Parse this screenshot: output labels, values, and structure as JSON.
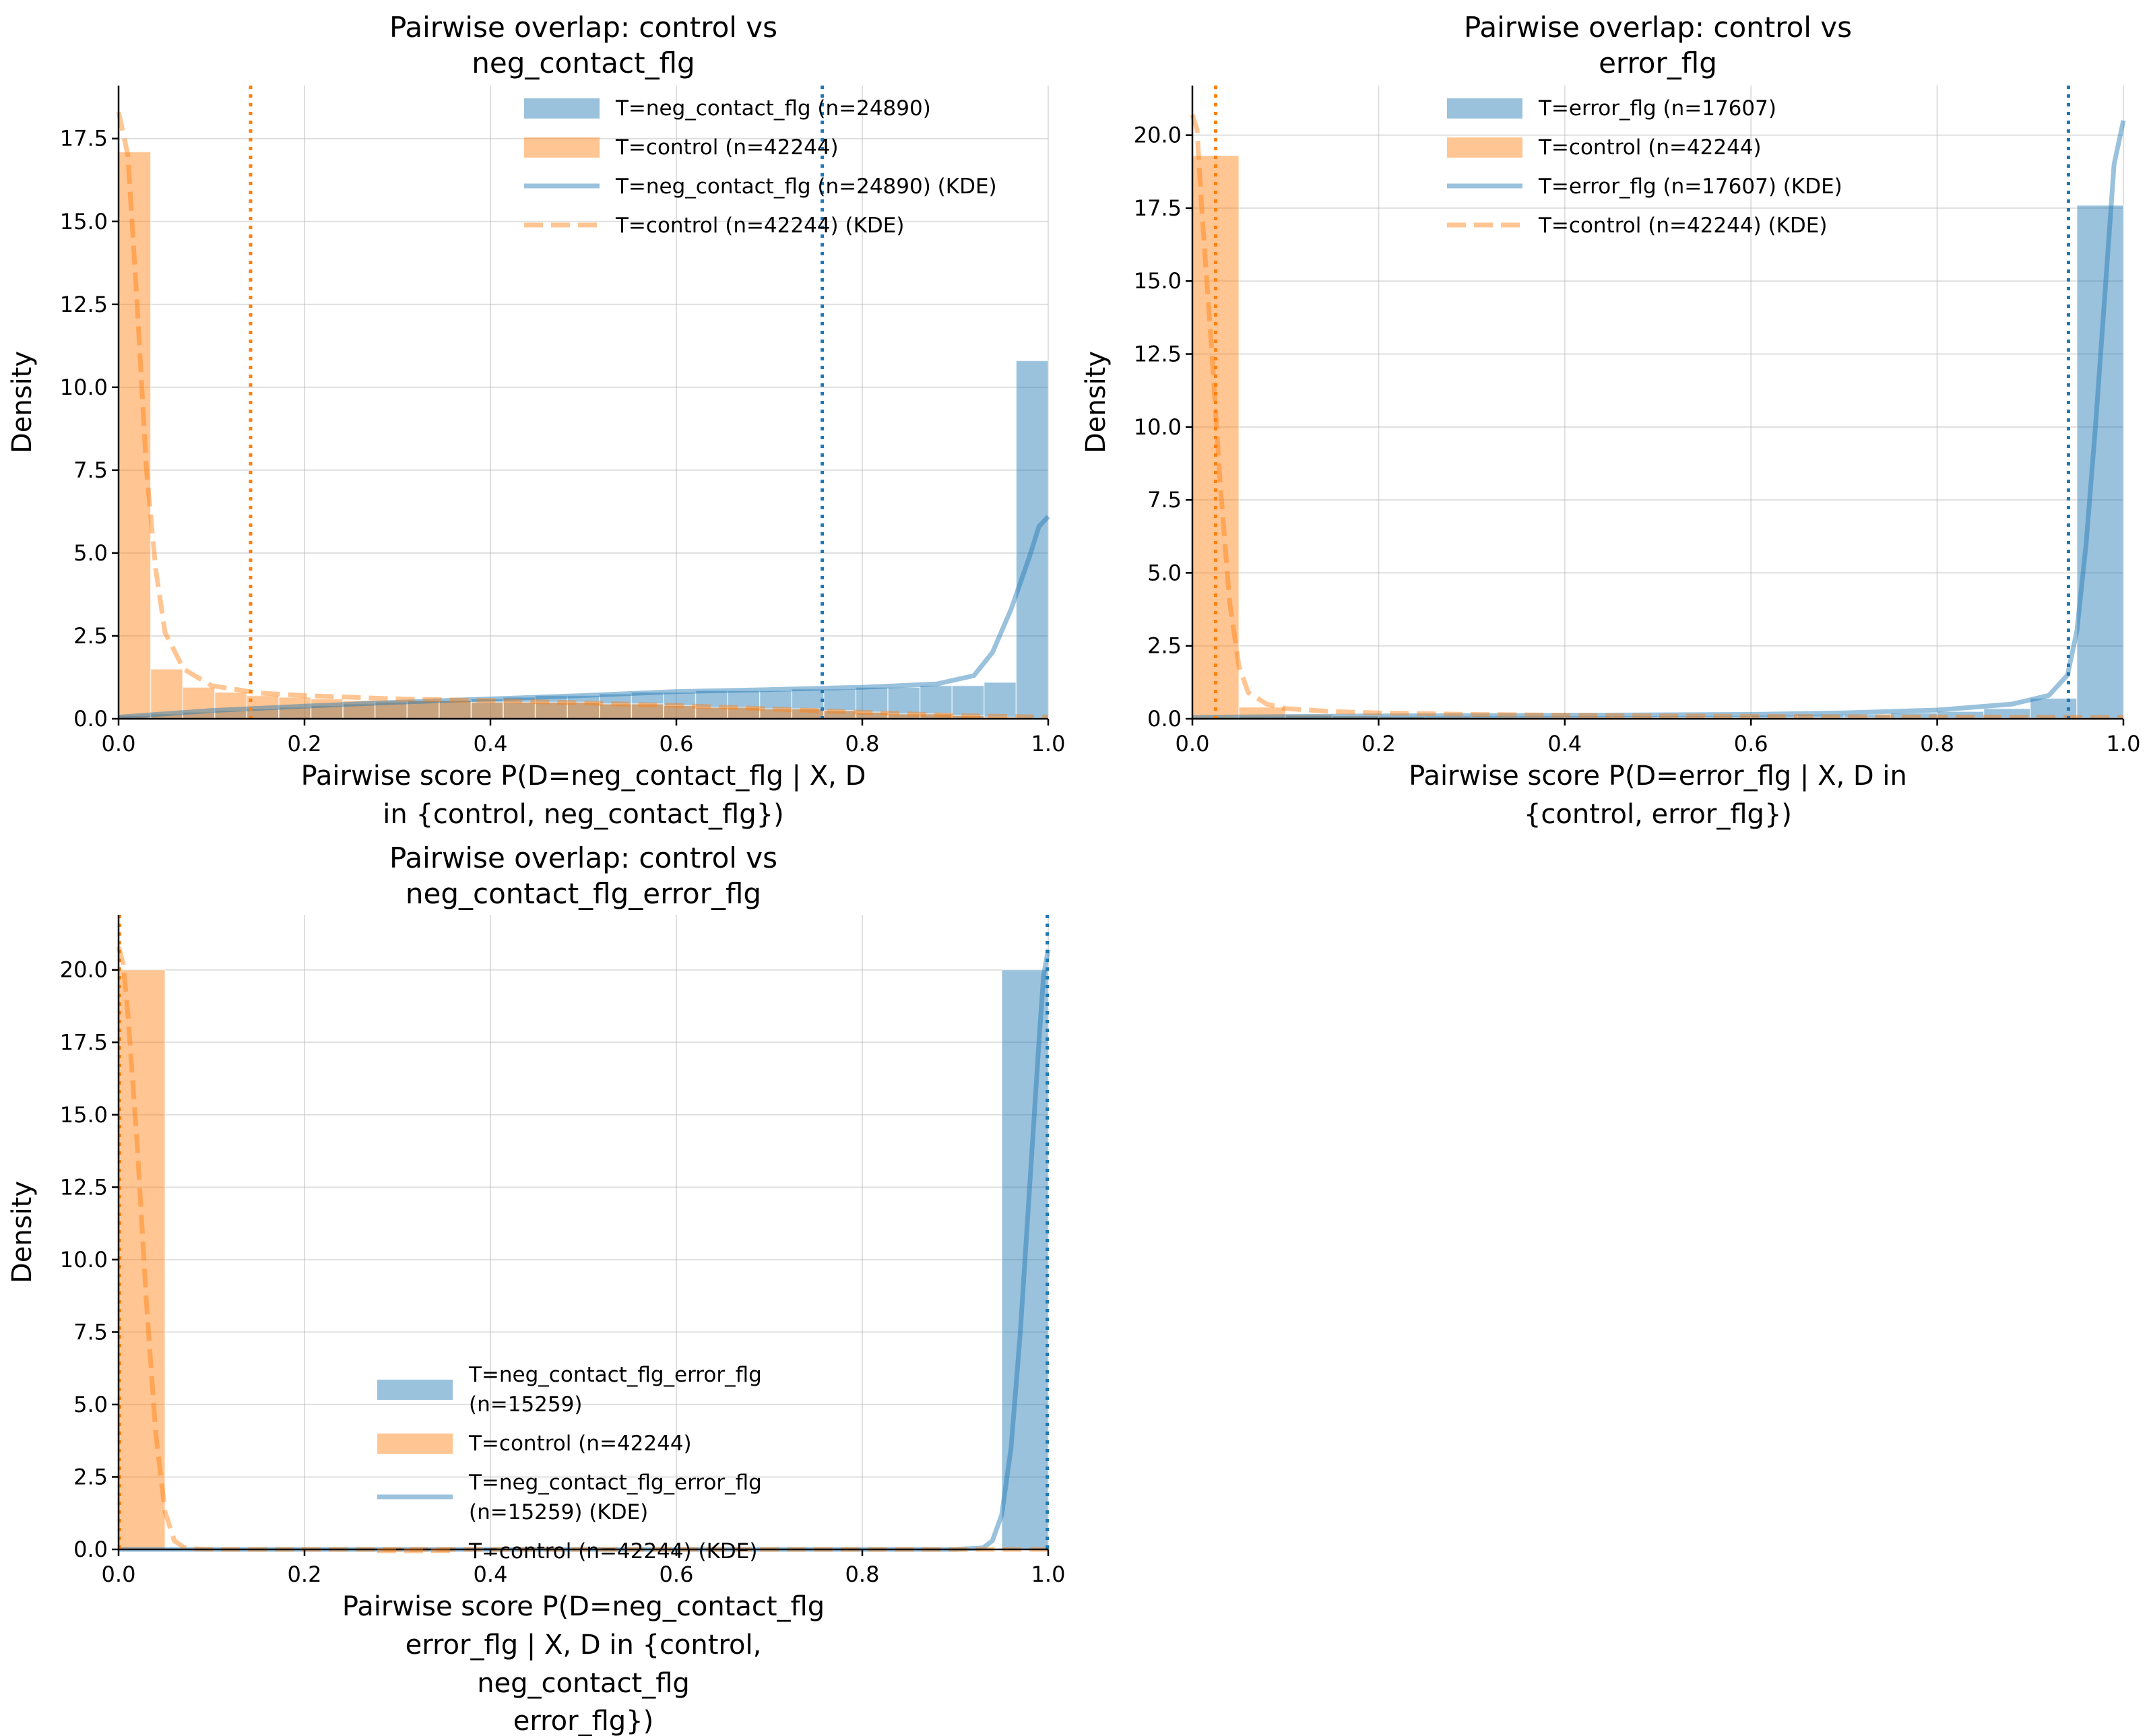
{
  "figure": {
    "colors": {
      "treated": "#1f77b4",
      "control": "#ff7f0e",
      "treated_fill": "#9bc0de",
      "control_fill": "#ffc596"
    }
  },
  "chart_data": [
    {
      "type": "bar",
      "title": [
        "Pairwise overlap: control vs",
        "neg_contact_flg"
      ],
      "xlabel": [
        "Pairwise score P(D=neg_contact_flg | X, D",
        "in {control, neg_contact_flg})"
      ],
      "ylabel": "Density",
      "xlim": [
        0.0,
        1.0
      ],
      "ylim": [
        0,
        19.1
      ],
      "xticks": [
        "0.0",
        "0.2",
        "0.4",
        "0.6",
        "0.8",
        "1.0"
      ],
      "yticks": [
        "0.0",
        "2.5",
        "5.0",
        "7.5",
        "10.0",
        "12.5",
        "15.0",
        "17.5"
      ],
      "grid": true,
      "legend_position": "top-right",
      "legend": [
        {
          "label": "T=neg_contact_flg (n=24890)",
          "kind": "patch",
          "series": "treated"
        },
        {
          "label": "T=control (n=42244)",
          "kind": "patch",
          "series": "control"
        },
        {
          "label": "T=neg_contact_flg (n=24890) (KDE)",
          "kind": "line",
          "series": "treated"
        },
        {
          "label": "T=control (n=42244) (KDE)",
          "kind": "dashed",
          "series": "control"
        }
      ],
      "bins": 29,
      "series": [
        {
          "name": "T=neg_contact_flg (n=24890)",
          "key": "treated",
          "hist": [
            0.1,
            0.15,
            0.2,
            0.25,
            0.3,
            0.35,
            0.4,
            0.45,
            0.5,
            0.55,
            0.55,
            0.6,
            0.65,
            0.7,
            0.7,
            0.75,
            0.8,
            0.8,
            0.85,
            0.85,
            0.85,
            0.9,
            0.9,
            0.95,
            0.95,
            1.0,
            1.0,
            1.1,
            10.8
          ],
          "kde": [
            [
              0,
              0.05
            ],
            [
              0.05,
              0.15
            ],
            [
              0.1,
              0.25
            ],
            [
              0.2,
              0.38
            ],
            [
              0.3,
              0.5
            ],
            [
              0.4,
              0.6
            ],
            [
              0.5,
              0.7
            ],
            [
              0.6,
              0.82
            ],
            [
              0.7,
              0.88
            ],
            [
              0.8,
              0.95
            ],
            [
              0.88,
              1.05
            ],
            [
              0.92,
              1.3
            ],
            [
              0.94,
              2.0
            ],
            [
              0.96,
              3.3
            ],
            [
              0.98,
              4.9
            ],
            [
              0.99,
              5.8
            ],
            [
              1.0,
              6.1
            ]
          ],
          "mean_line": 0.757
        },
        {
          "name": "T=control (n=42244)",
          "key": "control",
          "hist": [
            17.1,
            1.5,
            0.95,
            0.8,
            0.7,
            0.65,
            0.6,
            0.55,
            0.55,
            0.55,
            0.55,
            0.5,
            0.5,
            0.5,
            0.5,
            0.45,
            0.45,
            0.4,
            0.35,
            0.35,
            0.3,
            0.3,
            0.25,
            0.2,
            0.15,
            0.15,
            0.1,
            0.05,
            0.02
          ],
          "kde": [
            [
              0,
              18.3
            ],
            [
              0.01,
              17.0
            ],
            [
              0.02,
              12.5
            ],
            [
              0.03,
              7.5
            ],
            [
              0.04,
              4.5
            ],
            [
              0.05,
              2.6
            ],
            [
              0.07,
              1.5
            ],
            [
              0.1,
              1.0
            ],
            [
              0.15,
              0.78
            ],
            [
              0.2,
              0.7
            ],
            [
              0.3,
              0.6
            ],
            [
              0.4,
              0.55
            ],
            [
              0.5,
              0.48
            ],
            [
              0.6,
              0.4
            ],
            [
              0.7,
              0.3
            ],
            [
              0.8,
              0.2
            ],
            [
              0.9,
              0.1
            ],
            [
              1.0,
              0.05
            ]
          ],
          "mean_line": 0.142
        }
      ]
    },
    {
      "type": "bar",
      "title": [
        "Pairwise overlap: control vs",
        "error_flg"
      ],
      "xlabel": [
        "Pairwise score P(D=error_flg | X, D in",
        "{control, error_flg})"
      ],
      "ylabel": "Density",
      "xlim": [
        0.0,
        1.0
      ],
      "ylim": [
        0,
        21.7
      ],
      "xticks": [
        "0.0",
        "0.2",
        "0.4",
        "0.6",
        "0.8",
        "1.0"
      ],
      "yticks": [
        "0.0",
        "2.5",
        "5.0",
        "7.5",
        "10.0",
        "12.5",
        "15.0",
        "17.5",
        "20.0"
      ],
      "grid": true,
      "legend_position": "top-center",
      "legend": [
        {
          "label": "T=error_flg (n=17607)",
          "kind": "patch",
          "series": "treated"
        },
        {
          "label": "T=control (n=42244)",
          "kind": "patch",
          "series": "control"
        },
        {
          "label": "T=error_flg (n=17607) (KDE)",
          "kind": "line",
          "series": "treated"
        },
        {
          "label": "T=control (n=42244) (KDE)",
          "kind": "dashed",
          "series": "control"
        }
      ],
      "bins": 20,
      "series": [
        {
          "name": "T=error_flg (n=17607)",
          "key": "treated",
          "hist": [
            0.05,
            0.08,
            0.1,
            0.1,
            0.1,
            0.1,
            0.1,
            0.1,
            0.1,
            0.1,
            0.1,
            0.1,
            0.12,
            0.15,
            0.15,
            0.2,
            0.25,
            0.35,
            0.7,
            17.6
          ],
          "kde": [
            [
              0,
              0.05
            ],
            [
              0.2,
              0.1
            ],
            [
              0.4,
              0.12
            ],
            [
              0.6,
              0.15
            ],
            [
              0.7,
              0.2
            ],
            [
              0.8,
              0.3
            ],
            [
              0.88,
              0.5
            ],
            [
              0.92,
              0.8
            ],
            [
              0.94,
              1.5
            ],
            [
              0.95,
              3.0
            ],
            [
              0.96,
              6.0
            ],
            [
              0.97,
              10.0
            ],
            [
              0.98,
              14.5
            ],
            [
              0.99,
              19.0
            ],
            [
              1.0,
              20.5
            ]
          ],
          "mean_line": 0.941
        },
        {
          "name": "T=control (n=42244)",
          "key": "control",
          "hist": [
            19.3,
            0.4,
            0.15,
            0.1,
            0.08,
            0.06,
            0.05,
            0.05,
            0.05,
            0.04,
            0.04,
            0.04,
            0.03,
            0.03,
            0.03,
            0.02,
            0.02,
            0.02,
            0.02,
            0.02
          ],
          "kde": [
            [
              0,
              20.7
            ],
            [
              0.005,
              20.2
            ],
            [
              0.01,
              17.5
            ],
            [
              0.02,
              13.0
            ],
            [
              0.03,
              8.0
            ],
            [
              0.04,
              4.0
            ],
            [
              0.05,
              1.8
            ],
            [
              0.06,
              0.9
            ],
            [
              0.08,
              0.5
            ],
            [
              0.1,
              0.35
            ],
            [
              0.15,
              0.25
            ],
            [
              0.2,
              0.2
            ],
            [
              0.3,
              0.15
            ],
            [
              0.5,
              0.1
            ],
            [
              0.7,
              0.07
            ],
            [
              1.0,
              0.05
            ]
          ],
          "mean_line": 0.025
        }
      ]
    },
    {
      "type": "bar",
      "title": [
        "Pairwise overlap: control vs",
        "neg_contact_flg_error_flg"
      ],
      "xlabel": [
        "Pairwise score P(D=neg_contact_flg",
        "error_flg | X, D in {control,",
        "neg_contact_flg",
        "error_flg})"
      ],
      "ylabel": "Density",
      "xlim": [
        0.0,
        1.0
      ],
      "ylim": [
        0,
        21.9
      ],
      "xticks": [
        "0.0",
        "0.2",
        "0.4",
        "0.6",
        "0.8",
        "1.0"
      ],
      "yticks": [
        "0.0",
        "2.5",
        "5.0",
        "7.5",
        "10.0",
        "12.5",
        "15.0",
        "17.5",
        "20.0"
      ],
      "grid": true,
      "legend_position": "lower-center",
      "legend": [
        {
          "label": [
            "T=neg_contact_flg_error_flg",
            "(n=15259)"
          ],
          "kind": "patch",
          "series": "treated"
        },
        {
          "label": [
            "T=control (n=42244)"
          ],
          "kind": "patch",
          "series": "control"
        },
        {
          "label": [
            "T=neg_contact_flg_error_flg",
            "(n=15259) (KDE)"
          ],
          "kind": "line",
          "series": "treated"
        },
        {
          "label": [
            "T=control (n=42244) (KDE)"
          ],
          "kind": "dashed",
          "series": "control"
        }
      ],
      "bins": 20,
      "series": [
        {
          "name": "T=neg_contact_flg_error_flg (n=15259)",
          "key": "treated",
          "hist": [
            0,
            0,
            0,
            0,
            0,
            0,
            0,
            0,
            0,
            0,
            0,
            0,
            0,
            0,
            0,
            0,
            0,
            0,
            0,
            20.0
          ],
          "kde": [
            [
              0,
              0
            ],
            [
              0.9,
              0
            ],
            [
              0.93,
              0.05
            ],
            [
              0.94,
              0.3
            ],
            [
              0.95,
              1.2
            ],
            [
              0.96,
              3.5
            ],
            [
              0.97,
              7.5
            ],
            [
              0.98,
              12.5
            ],
            [
              0.99,
              17.5
            ],
            [
              0.995,
              19.8
            ],
            [
              1.0,
              20.7
            ]
          ],
          "mean_line": 0.999
        },
        {
          "name": "T=control (n=42244)",
          "key": "control",
          "hist": [
            20.0,
            0,
            0,
            0,
            0,
            0,
            0,
            0,
            0,
            0,
            0,
            0,
            0,
            0,
            0,
            0,
            0,
            0,
            0,
            0
          ],
          "kde": [
            [
              0,
              20.8
            ],
            [
              0.005,
              20.2
            ],
            [
              0.01,
              18.5
            ],
            [
              0.02,
              14.0
            ],
            [
              0.03,
              8.5
            ],
            [
              0.04,
              4.0
            ],
            [
              0.05,
              1.3
            ],
            [
              0.06,
              0.3
            ],
            [
              0.07,
              0.08
            ],
            [
              0.08,
              0.02
            ],
            [
              0.1,
              0
            ],
            [
              1.0,
              0
            ]
          ],
          "mean_line": 0.001
        }
      ]
    }
  ]
}
